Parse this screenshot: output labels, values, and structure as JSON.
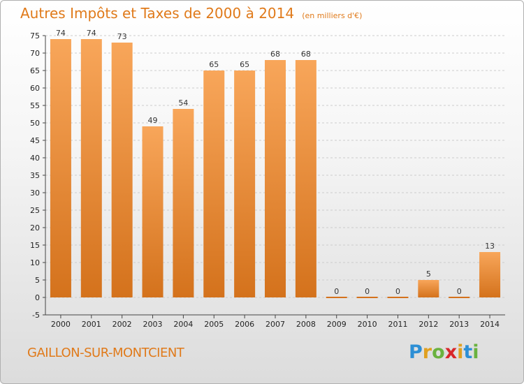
{
  "header": {
    "title": "Autres Impôts et Taxes de 2000 à 2014",
    "unit_note": "(en milliers d'€)"
  },
  "footer": {
    "location": "GAILLON-SUR-MONTCIENT"
  },
  "logo": {
    "letters": [
      "P",
      "r",
      "o",
      "x",
      "i",
      "t",
      "i"
    ]
  },
  "colors": {
    "bar_light": "#f8a65a",
    "bar_dark": "#d4721c",
    "title": "#e07a1a",
    "grid": "#cccccc"
  },
  "chart_data": {
    "type": "bar",
    "title": "Autres Impôts et Taxes de 2000 à 2014",
    "subtitle": "(en milliers d'€)",
    "xlabel": "",
    "ylabel": "",
    "categories": [
      "2000",
      "2001",
      "2002",
      "2003",
      "2004",
      "2005",
      "2006",
      "2007",
      "2008",
      "2009",
      "2010",
      "2011",
      "2012",
      "2013",
      "2014"
    ],
    "values": [
      74,
      74,
      73,
      49,
      54,
      65,
      65,
      68,
      68,
      0,
      0,
      0,
      5,
      0,
      13
    ],
    "data_labels": [
      "74",
      "74",
      "73",
      "49",
      "54",
      "65",
      "65",
      "68",
      "68",
      "0",
      "0",
      "0",
      "5",
      "0",
      "13"
    ],
    "ylim": [
      -5,
      75
    ],
    "yticks": [
      -5,
      0,
      5,
      10,
      15,
      20,
      25,
      30,
      35,
      40,
      45,
      50,
      55,
      60,
      65,
      70,
      75
    ],
    "grid": "horizontal dashed",
    "legend": "none"
  }
}
